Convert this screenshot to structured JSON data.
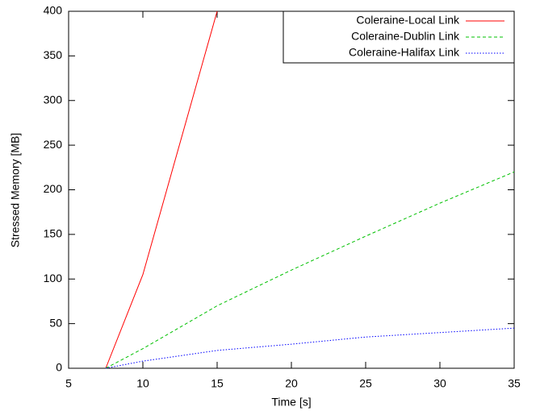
{
  "chart_data": {
    "type": "line",
    "xlabel": "Time [s]",
    "ylabel": "Stressed Memory [MB]",
    "x": [
      7.5,
      10,
      15,
      20,
      25,
      30,
      35
    ],
    "series": [
      {
        "name": "Coleraine-Local Link",
        "color": "#ff0000",
        "dash": "solid",
        "values": [
          0,
          105,
          400,
          null,
          null,
          null,
          null
        ]
      },
      {
        "name": "Coleraine-Dublin Link",
        "color": "#00c000",
        "dash": "dashed",
        "values": [
          0,
          22,
          70,
          110,
          148,
          185,
          220
        ]
      },
      {
        "name": "Coleraine-Halifax Link",
        "color": "#0000ff",
        "dash": "dotted",
        "values": [
          0,
          8,
          20,
          27,
          35,
          40,
          45
        ]
      }
    ],
    "xlim": [
      5,
      35
    ],
    "xticks": [
      5,
      10,
      15,
      20,
      25,
      30,
      35
    ],
    "ylim": [
      0,
      400
    ],
    "yticks": [
      0,
      50,
      100,
      150,
      200,
      250,
      300,
      350,
      400
    ],
    "legend": "top-right",
    "grid": false
  }
}
